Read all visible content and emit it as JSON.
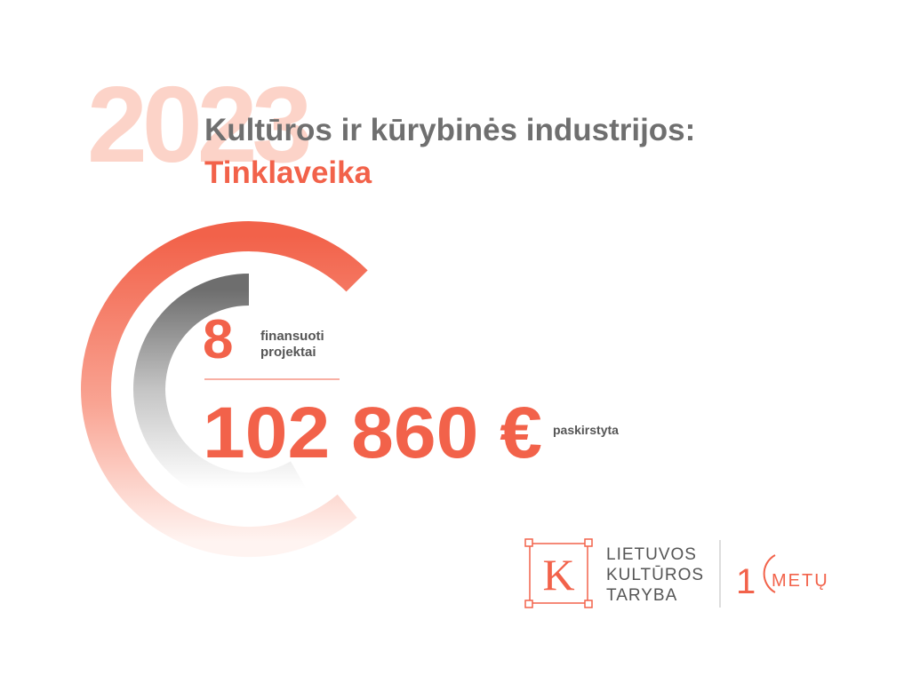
{
  "header": {
    "year": "2023",
    "title": "Kultūros ir kūrybinės industrijos:",
    "subtitle": "Tinklaveika"
  },
  "stats": {
    "count": "8",
    "count_label": [
      "finansuoti",
      "projektai"
    ],
    "amount": "102 860 €",
    "amount_label": "paskirstyta"
  },
  "logo": {
    "letter": "K",
    "lines": [
      "LIETUVOS",
      "KULTŪROS",
      "TARYBA"
    ],
    "anniversary_digit": "1",
    "anniversary_word": "METŲ"
  }
}
